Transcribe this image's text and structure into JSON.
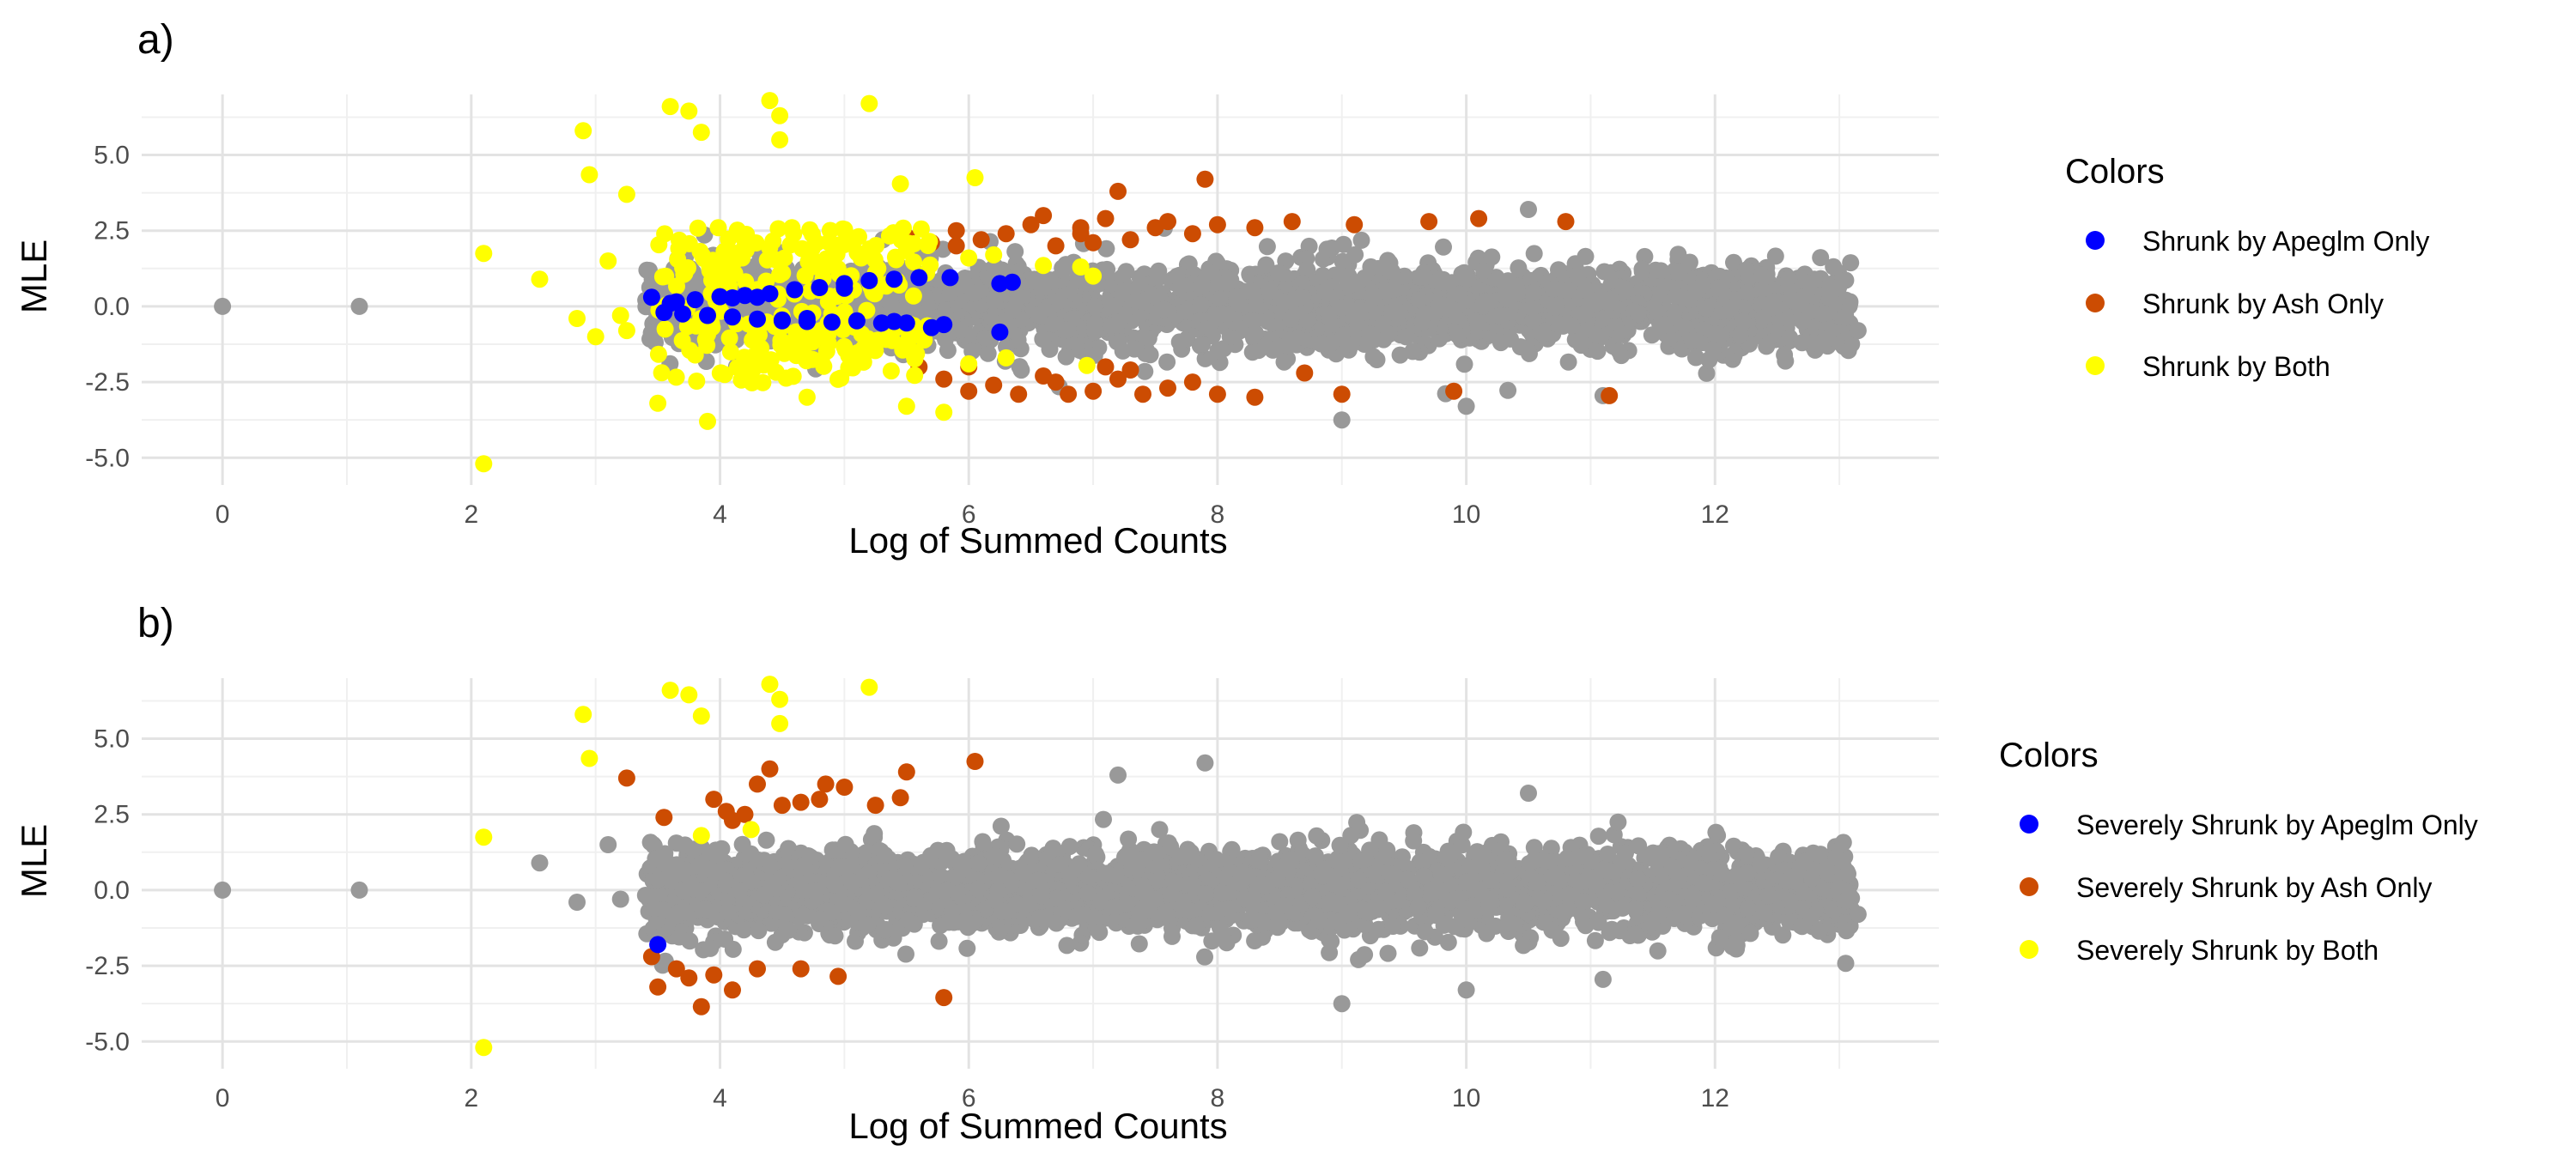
{
  "colors": {
    "gray": "#999999",
    "blue": "#0000ff",
    "orange": "#cc4c02",
    "yellow": "#ffff00"
  },
  "chart_data": [
    {
      "type": "scatter",
      "tag": "a)",
      "title": "",
      "xlabel": "Log of Summed Counts",
      "ylabel": "MLE",
      "xlim": [
        -0.65,
        13.8
      ],
      "ylim": [
        -5.9,
        7.0
      ],
      "x_ticks": [
        0,
        2,
        4,
        6,
        8,
        10,
        12
      ],
      "x_tick_labels": [
        "0",
        "2",
        "4",
        "6",
        "8",
        "10",
        "12"
      ],
      "y_ticks": [
        -5,
        -2.5,
        0,
        2.5,
        5
      ],
      "y_tick_labels": [
        "-5.0",
        "-2.5",
        "0.0",
        "2.5",
        "5.0"
      ],
      "grid": true,
      "legend": {
        "title": "Colors",
        "position": "right",
        "entries": [
          {
            "label": "Shrunk by Apeglm Only",
            "color": "#0000ff"
          },
          {
            "label": "Shrunk by Ash Only",
            "color": "#cc4c02"
          },
          {
            "label": "Shrunk by Both",
            "color": "#ffff00"
          }
        ]
      },
      "series": [
        {
          "key": "unshrunk",
          "color": "#999999",
          "cloud": {
            "x_range": [
              3.4,
              13.1
            ],
            "y_spread": 1.25,
            "count": 2600
          },
          "points": [
            [
              0,
              0
            ],
            [
              1.1,
              0
            ],
            [
              9.0,
              -3.75
            ],
            [
              10.0,
              -3.3
            ],
            [
              11.1,
              -2.95
            ],
            [
              12.15,
              1.45
            ],
            [
              12.25,
              1.2
            ],
            [
              12.6,
              -1.05
            ],
            [
              12.7,
              -1.2
            ],
            [
              13.05,
              -0.35
            ],
            [
              13.15,
              -0.8
            ],
            [
              10.5,
              3.2
            ],
            [
              11.6,
              -0.6
            ],
            [
              12.0,
              -0.9
            ],
            [
              11.9,
              0.7
            ]
          ]
        },
        {
          "key": "shrunk-by-ash-only",
          "color": "#cc4c02",
          "points": [
            [
              5.5,
              2.3
            ],
            [
              5.7,
              2.1
            ],
            [
              5.9,
              2.5
            ],
            [
              6.1,
              2.2
            ],
            [
              6.3,
              2.4
            ],
            [
              6.5,
              2.7
            ],
            [
              6.7,
              2.0
            ],
            [
              6.9,
              2.4
            ],
            [
              7.1,
              2.9
            ],
            [
              7.2,
              3.8
            ],
            [
              7.3,
              2.2
            ],
            [
              7.5,
              2.6
            ],
            [
              7.6,
              2.8
            ],
            [
              7.8,
              2.4
            ],
            [
              7.9,
              4.2
            ],
            [
              8.0,
              2.7
            ],
            [
              8.3,
              2.6
            ],
            [
              8.6,
              2.8
            ],
            [
              9.1,
              2.7
            ],
            [
              9.7,
              2.8
            ],
            [
              10.1,
              2.9
            ],
            [
              10.8,
              2.8
            ],
            [
              6.6,
              3.0
            ],
            [
              6.9,
              2.6
            ],
            [
              7.0,
              2.1
            ],
            [
              5.6,
              -2.0
            ],
            [
              5.8,
              -2.4
            ],
            [
              6.0,
              -2.8
            ],
            [
              6.2,
              -2.6
            ],
            [
              6.4,
              -2.9
            ],
            [
              6.6,
              -2.3
            ],
            [
              6.8,
              -2.9
            ],
            [
              7.0,
              -2.8
            ],
            [
              7.1,
              -2.0
            ],
            [
              7.3,
              -2.1
            ],
            [
              7.4,
              -2.9
            ],
            [
              7.6,
              -2.7
            ],
            [
              7.8,
              -2.5
            ],
            [
              8.0,
              -2.9
            ],
            [
              8.3,
              -3.0
            ],
            [
              8.7,
              -2.2
            ],
            [
              9.0,
              -2.9
            ],
            [
              9.9,
              -2.8
            ],
            [
              11.15,
              -2.95
            ],
            [
              6.0,
              -2.0
            ],
            [
              6.7,
              -2.5
            ],
            [
              7.2,
              -2.4
            ],
            [
              5.9,
              2.0
            ]
          ]
        },
        {
          "key": "shrunk-by-both",
          "color": "#ffff00",
          "cloud": {
            "x_range": [
              3.5,
              5.7
            ],
            "y_band": [
              0.5,
              2.6
            ],
            "count": 260
          },
          "points": [
            [
              2.1,
              1.75
            ],
            [
              2.1,
              -5.2
            ],
            [
              2.55,
              0.9
            ],
            [
              2.85,
              -0.4
            ],
            [
              2.9,
              5.8
            ],
            [
              2.95,
              4.35
            ],
            [
              3.25,
              3.7
            ],
            [
              3.2,
              -0.3
            ],
            [
              3.25,
              -0.8
            ],
            [
              3.6,
              6.6
            ],
            [
              3.75,
              6.45
            ],
            [
              3.85,
              5.75
            ],
            [
              4.4,
              6.8
            ],
            [
              4.48,
              6.3
            ],
            [
              4.48,
              5.5
            ],
            [
              5.2,
              6.7
            ],
            [
              5.45,
              4.05
            ],
            [
              6.05,
              4.25
            ],
            [
              3.5,
              -3.2
            ],
            [
              3.9,
              -3.8
            ],
            [
              4.7,
              -3.0
            ],
            [
              5.5,
              -3.3
            ],
            [
              5.8,
              -3.5
            ],
            [
              6.0,
              -1.9
            ],
            [
              6.3,
              -1.7
            ],
            [
              6.95,
              -1.95
            ],
            [
              6.6,
              1.35
            ],
            [
              6.9,
              1.3
            ],
            [
              7.0,
              1.0
            ],
            [
              6.2,
              1.7
            ],
            [
              6.0,
              1.6
            ],
            [
              3.1,
              1.5
            ],
            [
              3.0,
              -1.0
            ]
          ]
        },
        {
          "key": "shrunk-by-apeglm-only",
          "color": "#0000ff",
          "points": [
            [
              3.45,
              0.3
            ],
            [
              3.6,
              0.1
            ],
            [
              3.8,
              0.22
            ],
            [
              4.0,
              0.32
            ],
            [
              4.2,
              0.36
            ],
            [
              4.4,
              0.42
            ],
            [
              4.6,
              0.55
            ],
            [
              4.8,
              0.62
            ],
            [
              5.0,
              0.75
            ],
            [
              5.2,
              0.85
            ],
            [
              5.4,
              0.9
            ],
            [
              5.6,
              0.95
            ],
            [
              5.85,
              0.95
            ],
            [
              6.25,
              0.75
            ],
            [
              6.35,
              0.8
            ],
            [
              3.55,
              -0.2
            ],
            [
              3.7,
              -0.25
            ],
            [
              3.9,
              -0.3
            ],
            [
              4.1,
              -0.35
            ],
            [
              4.3,
              -0.42
            ],
            [
              4.5,
              -0.45
            ],
            [
              4.7,
              -0.5
            ],
            [
              4.9,
              -0.52
            ],
            [
              5.1,
              -0.48
            ],
            [
              5.3,
              -0.55
            ],
            [
              5.5,
              -0.55
            ],
            [
              5.7,
              -0.7
            ],
            [
              6.25,
              -0.85
            ],
            [
              4.3,
              0.3
            ],
            [
              4.7,
              -0.4
            ],
            [
              5.0,
              0.6
            ],
            [
              5.4,
              -0.5
            ],
            [
              3.65,
              0.15
            ],
            [
              4.1,
              0.28
            ],
            [
              4.5,
              -0.48
            ],
            [
              5.8,
              -0.6
            ]
          ]
        }
      ]
    },
    {
      "type": "scatter",
      "tag": "b)",
      "title": "",
      "xlabel": "Log of Summed Counts",
      "ylabel": "MLE",
      "xlim": [
        -0.65,
        13.8
      ],
      "ylim": [
        -5.9,
        7.0
      ],
      "x_ticks": [
        0,
        2,
        4,
        6,
        8,
        10,
        12
      ],
      "x_tick_labels": [
        "0",
        "2",
        "4",
        "6",
        "8",
        "10",
        "12"
      ],
      "y_ticks": [
        -5,
        -2.5,
        0,
        2.5,
        5
      ],
      "y_tick_labels": [
        "-5.0",
        "-2.5",
        "0.0",
        "2.5",
        "5.0"
      ],
      "grid": true,
      "legend": {
        "title": "Colors",
        "position": "right",
        "entries": [
          {
            "label": "Severely Shrunk by Apeglm Only",
            "color": "#0000ff"
          },
          {
            "label": "Severely Shrunk by Ash Only",
            "color": "#cc4c02"
          },
          {
            "label": "Severely Shrunk by Both",
            "color": "#ffff00"
          }
        ]
      },
      "series": [
        {
          "key": "unshrunk",
          "color": "#999999",
          "cloud": {
            "x_range": [
              3.4,
              13.1
            ],
            "y_spread": 1.25,
            "count": 3000
          },
          "points": [
            [
              0,
              0
            ],
            [
              1.1,
              0
            ],
            [
              2.55,
              0.9
            ],
            [
              2.85,
              -0.4
            ],
            [
              3.1,
              1.5
            ],
            [
              3.2,
              -0.3
            ],
            [
              9.0,
              -3.75
            ],
            [
              10.0,
              -3.3
            ],
            [
              11.1,
              -2.95
            ],
            [
              12.15,
              1.45
            ],
            [
              12.25,
              1.2
            ],
            [
              12.6,
              -1.05
            ],
            [
              12.7,
              -1.2
            ],
            [
              13.05,
              -0.35
            ],
            [
              13.15,
              -0.8
            ],
            [
              7.2,
              3.8
            ],
            [
              7.9,
              4.2
            ],
            [
              10.5,
              3.2
            ]
          ]
        },
        {
          "key": "severely-shrunk-by-ash-only",
          "color": "#cc4c02",
          "points": [
            [
              3.25,
              3.7
            ],
            [
              3.55,
              2.4
            ],
            [
              3.95,
              3.0
            ],
            [
              4.05,
              2.6
            ],
            [
              4.2,
              2.5
            ],
            [
              4.4,
              4.0
            ],
            [
              4.3,
              3.5
            ],
            [
              4.5,
              2.8
            ],
            [
              4.65,
              2.9
            ],
            [
              4.8,
              3.0
            ],
            [
              4.85,
              3.5
            ],
            [
              5.0,
              3.4
            ],
            [
              5.25,
              2.8
            ],
            [
              5.45,
              3.05
            ],
            [
              5.5,
              3.9
            ],
            [
              6.05,
              4.25
            ],
            [
              3.45,
              -2.2
            ],
            [
              3.5,
              -3.2
            ],
            [
              3.65,
              -2.6
            ],
            [
              3.75,
              -2.9
            ],
            [
              3.85,
              -3.85
            ],
            [
              3.95,
              -2.8
            ],
            [
              4.1,
              -3.3
            ],
            [
              4.3,
              -2.6
            ],
            [
              4.65,
              -2.6
            ],
            [
              4.95,
              -2.85
            ],
            [
              5.8,
              -3.55
            ],
            [
              4.1,
              2.3
            ]
          ]
        },
        {
          "key": "severely-shrunk-by-both",
          "color": "#ffff00",
          "points": [
            [
              2.1,
              1.75
            ],
            [
              2.1,
              -5.2
            ],
            [
              2.9,
              5.8
            ],
            [
              2.95,
              4.35
            ],
            [
              3.6,
              6.6
            ],
            [
              3.75,
              6.45
            ],
            [
              3.85,
              5.75
            ],
            [
              4.4,
              6.8
            ],
            [
              4.48,
              6.3
            ],
            [
              4.48,
              5.5
            ],
            [
              5.2,
              6.7
            ],
            [
              3.85,
              1.8
            ],
            [
              4.25,
              2.0
            ]
          ]
        },
        {
          "key": "severely-shrunk-by-apeglm-only",
          "color": "#0000ff",
          "points": [
            [
              3.5,
              -1.8
            ]
          ]
        }
      ]
    }
  ]
}
